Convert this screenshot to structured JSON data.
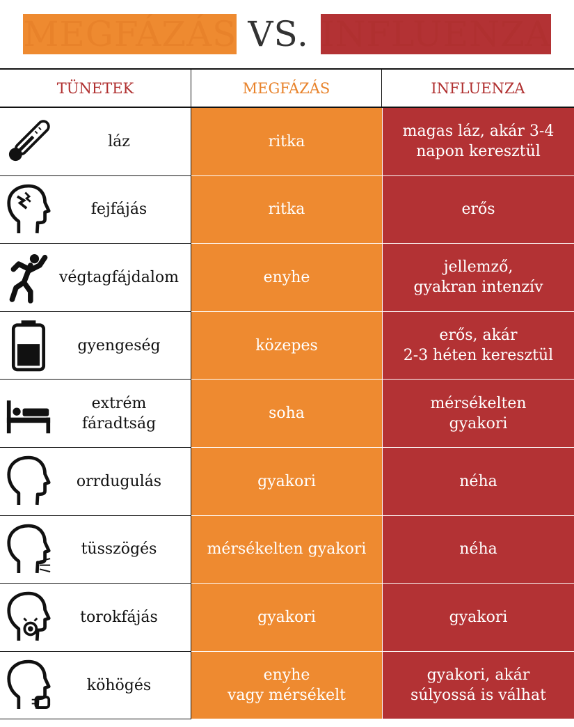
{
  "header": {
    "cold": "MEGFÁZÁS",
    "vs": "VS.",
    "flu": "INFLUENZA"
  },
  "table": {
    "columns": [
      "TÜNETEK",
      "MEGFÁZÁS",
      "INFLUENZA"
    ],
    "rows": [
      {
        "symptom": [
          "láz"
        ],
        "cold": [
          "ritka"
        ],
        "flu": [
          "magas láz, akár 3-4",
          "napon keresztül"
        ]
      },
      {
        "symptom": [
          "fejfájás"
        ],
        "cold": [
          "ritka"
        ],
        "flu": [
          "erős"
        ]
      },
      {
        "symptom": [
          "végtagfájdalom"
        ],
        "cold": [
          "enyhe"
        ],
        "flu": [
          "jellemző,",
          "gyakran intenzív"
        ]
      },
      {
        "symptom": [
          "gyengeség"
        ],
        "cold": [
          "közepes"
        ],
        "flu": [
          "erős, akár",
          "2-3 héten keresztül"
        ]
      },
      {
        "symptom": [
          "extrém",
          "fáradtság"
        ],
        "cold": [
          "soha"
        ],
        "flu": [
          "mérsékelten",
          "gyakori"
        ]
      },
      {
        "symptom": [
          "orrdugulás"
        ],
        "cold": [
          "gyakori"
        ],
        "flu": [
          "néha"
        ]
      },
      {
        "symptom": [
          "tüsszögés"
        ],
        "cold": [
          "mérsékelten gyakori"
        ],
        "flu": [
          "néha"
        ]
      },
      {
        "symptom": [
          "torokfájás"
        ],
        "cold": [
          "gyakori"
        ],
        "flu": [
          "gyakori"
        ]
      },
      {
        "symptom": [
          "köhögés"
        ],
        "cold": [
          "enyhe",
          "vagy mérsékelt"
        ],
        "flu": [
          "gyakori, akár",
          "súlyossá is válhat"
        ]
      }
    ]
  }
}
